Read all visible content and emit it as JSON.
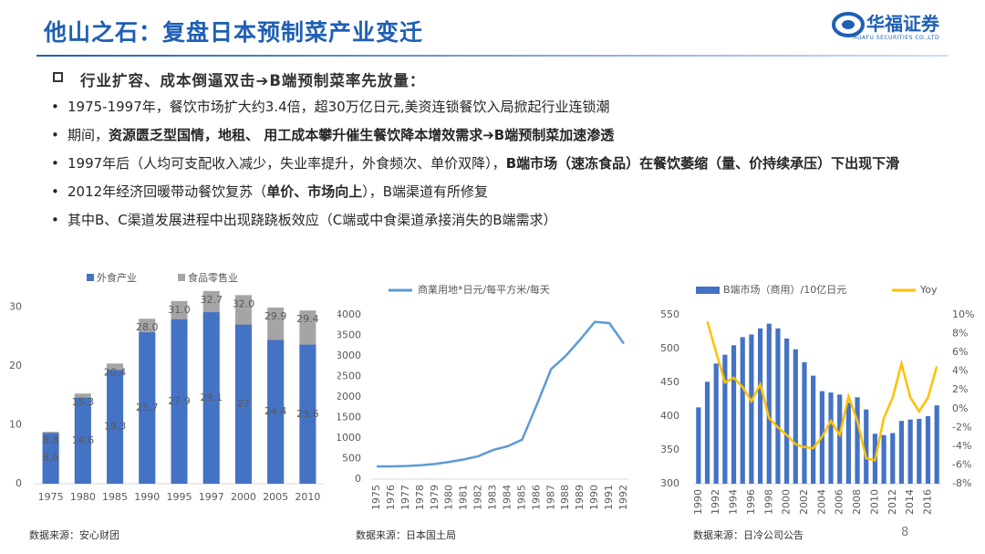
{
  "header": {
    "title": "他山之石：复盘日本预制菜产业变迁",
    "logo_text": "华福证券",
    "logo_subtext": "HUAFU SECURITIES CO.,LTD"
  },
  "subtitle": "行业扩容、成本倒逼双击➔B端预制菜率先放量：",
  "bullets": [
    [
      {
        "text": "1975-1997年，餐饮市场扩大约3.4倍，超30万亿日元,美资连锁餐饮入局掀起行业连锁潮",
        "bold": false
      }
    ],
    [
      {
        "text": "期间，",
        "bold": false
      },
      {
        "text": "资源匮乏型国情，地租、 用工成本攀升催生餐饮降本增效需求➔B端预制菜加速渗透",
        "bold": true
      }
    ],
    [
      {
        "text": "1997年后（人均可支配收入减少，失业率提升，外食频次、单价双降），",
        "bold": false
      },
      {
        "text": "B端市场（速冻食品）在餐饮萎缩（量、价持续承压）下出现下滑",
        "bold": true
      }
    ],
    [
      {
        "text": "2012年经济回暖带动餐饮复苏（",
        "bold": false
      },
      {
        "text": "单价、市场向上",
        "bold": true
      },
      {
        "text": "），B端渠道有所修复",
        "bold": false
      }
    ],
    [
      {
        "text": "其中B、C渠道发展进程中出现跷跷板效应（C端或中食渠道承接消失的B端需求）",
        "bold": false
      }
    ]
  ],
  "chart_data": [
    {
      "type": "bar",
      "source": "数据来源：安心财团",
      "categories": [
        "1975",
        "1980",
        "1985",
        "1990",
        "1995",
        "1997",
        "2000",
        "2005",
        "2010"
      ],
      "series": [
        {
          "name": "食品零售业",
          "color": "#a5a5a5",
          "values": [
            8.8,
            15.3,
            20.4,
            28,
            31,
            32.7,
            32,
            29.9,
            29.4
          ],
          "value_labels": [
            "8.8",
            "15.3",
            "20.4",
            "28.0",
            "31.0",
            "32.7",
            "32.0",
            "29.9",
            "29.4"
          ]
        },
        {
          "name": "外食产业",
          "color": "#4472c4",
          "values": [
            8.6,
            14.6,
            19.3,
            25.7,
            27.9,
            29.1,
            27,
            24.4,
            23.6
          ]
        }
      ],
      "ylim": [
        0,
        35
      ],
      "yticks": [
        0,
        10,
        20,
        30
      ]
    },
    {
      "type": "line",
      "source": "数据来源：日本国土局",
      "categories": [
        "1975",
        "1976",
        "1977",
        "1978",
        "1979",
        "1980",
        "1981",
        "1982",
        "1983",
        "1984",
        "1985",
        "1986",
        "1987",
        "1988",
        "1989",
        "1990",
        "1991",
        "1992"
      ],
      "series": [
        {
          "name": "商業用地*日元/每平方米/每天",
          "color": "#5b9bd5",
          "values": [
            310,
            310,
            320,
            340,
            370,
            420,
            480,
            560,
            710,
            800,
            960,
            1800,
            2680,
            3000,
            3400,
            3830,
            3800,
            3300
          ]
        }
      ],
      "ylim": [
        0,
        4000
      ],
      "yticks": [
        0,
        500,
        1000,
        1500,
        2000,
        2500,
        3000,
        3500,
        4000
      ]
    },
    {
      "type": "bar-line",
      "source": "数据来源：日冷公司公告",
      "page": "8",
      "categories": [
        "1990",
        null,
        "1992",
        null,
        "1994",
        null,
        "1996",
        null,
        "1998",
        null,
        "2000",
        null,
        "2002",
        null,
        "2004",
        null,
        "2006",
        null,
        "2008",
        null,
        "2010",
        null,
        "2012",
        null,
        "2014",
        null,
        "2016",
        null
      ],
      "series": [
        {
          "name": "B端市场（商用）/10亿日元",
          "color": "#4472c4",
          "values": [
            413,
            451,
            478,
            491,
            505,
            517,
            521,
            530,
            537,
            530,
            515,
            499,
            480,
            460,
            437,
            435,
            432,
            420,
            428,
            410,
            374,
            372,
            375,
            393,
            395,
            396,
            400,
            416
          ]
        },
        {
          "name": "Yoy",
          "color": "#ffc000",
          "axis": "y2",
          "values": [
            null,
            9.3,
            6,
            2.8,
            3.3,
            2.3,
            0.8,
            2.6,
            -1,
            -2,
            -2.8,
            -3.8,
            -4.1,
            -4.2,
            -3,
            -1.3,
            -2.8,
            1.3,
            -1.3,
            -5.3,
            -5.5,
            -1,
            1.2,
            4.8,
            1.2,
            -0.3,
            1.2,
            4.5
          ]
        }
      ],
      "ylim": [
        300,
        550
      ],
      "yticks": [
        300,
        350,
        400,
        450,
        500,
        550
      ],
      "y2lim": [
        -8,
        10
      ],
      "y2ticks": [
        {
          "value": -8,
          "label": "-8%"
        },
        {
          "value": -6,
          "label": "-6%"
        },
        {
          "value": -4,
          "label": "-4%"
        },
        {
          "value": -2,
          "label": "-2%"
        },
        {
          "value": 0,
          "label": "0%"
        },
        {
          "value": 2,
          "label": "2%"
        },
        {
          "value": 4,
          "label": "4%"
        },
        {
          "value": 6,
          "label": "6%"
        },
        {
          "value": 8,
          "label": "8%"
        },
        {
          "value": 10,
          "label": "10%"
        }
      ]
    }
  ]
}
